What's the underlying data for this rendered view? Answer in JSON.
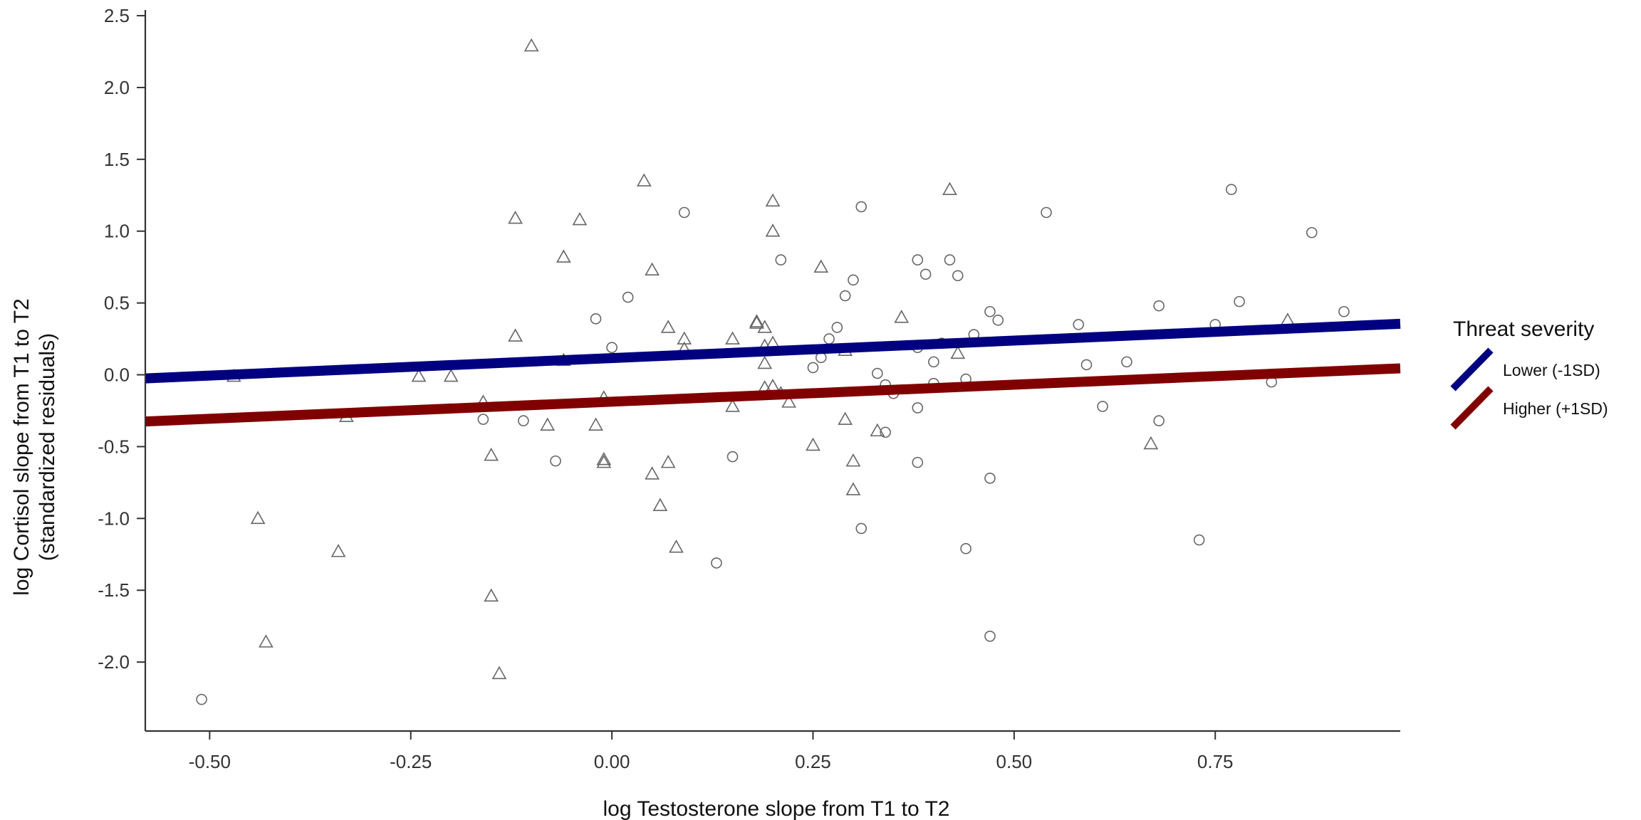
{
  "chart_data": {
    "type": "scatter",
    "xlabel": "log Testosterone slope from T1 to T2",
    "ylabel_line1": "log Cortisol slope from T1 to T2",
    "ylabel_line2": "(standardized residuals)",
    "xlim": [
      -0.58,
      0.98
    ],
    "ylim": [
      -2.48,
      2.52
    ],
    "x_ticks": [
      -0.5,
      -0.25,
      0.0,
      0.25,
      0.5,
      0.75
    ],
    "x_tick_labels": [
      "-0.50",
      "-0.25",
      "0.00",
      "0.25",
      "0.50",
      "0.75"
    ],
    "y_ticks": [
      -2.0,
      -1.5,
      -1.0,
      -0.5,
      0.0,
      0.5,
      1.0,
      1.5,
      2.0,
      2.5
    ],
    "y_tick_labels": [
      "-2.0",
      "-1.5",
      "-1.0",
      "-0.5",
      "0.0",
      "0.5",
      "1.0",
      "1.5",
      "2.0",
      "2.5"
    ],
    "grid": false,
    "legend": {
      "title": "Threat severity",
      "placement": "right",
      "entries": [
        {
          "label": "Lower (-1SD)",
          "color": "#000080"
        },
        {
          "label": "Higher (+1SD)",
          "color": "#800000"
        }
      ]
    },
    "lines": [
      {
        "name": "Lower (-1SD)",
        "color": "#000080",
        "x": [
          -0.58,
          0.98
        ],
        "y": [
          -0.025,
          0.355
        ]
      },
      {
        "name": "Higher (+1SD)",
        "color": "#800000",
        "x": [
          -0.58,
          0.98
        ],
        "y": [
          -0.325,
          0.045
        ]
      }
    ],
    "points_circle": [
      [
        -0.51,
        -2.26
      ],
      [
        -0.16,
        -0.31
      ],
      [
        -0.11,
        -0.32
      ],
      [
        -0.07,
        -0.6
      ],
      [
        -0.02,
        0.39
      ],
      [
        0.0,
        0.19
      ],
      [
        0.02,
        0.54
      ],
      [
        0.09,
        1.13
      ],
      [
        0.13,
        -1.31
      ],
      [
        0.15,
        -0.57
      ],
      [
        0.21,
        0.8
      ],
      [
        0.25,
        0.05
      ],
      [
        0.26,
        0.12
      ],
      [
        0.27,
        0.25
      ],
      [
        0.28,
        0.33
      ],
      [
        0.29,
        0.55
      ],
      [
        0.3,
        0.66
      ],
      [
        0.31,
        1.17
      ],
      [
        0.31,
        -1.07
      ],
      [
        0.33,
        0.01
      ],
      [
        0.34,
        -0.07
      ],
      [
        0.34,
        -0.4
      ],
      [
        0.35,
        -0.13
      ],
      [
        0.38,
        0.8
      ],
      [
        0.38,
        0.19
      ],
      [
        0.38,
        -0.23
      ],
      [
        0.38,
        -0.61
      ],
      [
        0.39,
        0.7
      ],
      [
        0.4,
        -0.06
      ],
      [
        0.4,
        0.09
      ],
      [
        0.41,
        0.22
      ],
      [
        0.42,
        0.8
      ],
      [
        0.43,
        0.69
      ],
      [
        0.44,
        -1.21
      ],
      [
        0.44,
        -0.03
      ],
      [
        0.45,
        0.28
      ],
      [
        0.47,
        0.44
      ],
      [
        0.47,
        -0.72
      ],
      [
        0.47,
        -1.82
      ],
      [
        0.48,
        0.38
      ],
      [
        0.54,
        1.13
      ],
      [
        0.58,
        0.35
      ],
      [
        0.59,
        0.07
      ],
      [
        0.61,
        -0.22
      ],
      [
        0.64,
        0.09
      ],
      [
        0.68,
        -0.32
      ],
      [
        0.68,
        0.48
      ],
      [
        0.73,
        -1.15
      ],
      [
        0.75,
        0.35
      ],
      [
        0.77,
        1.29
      ],
      [
        0.78,
        0.51
      ],
      [
        0.82,
        -0.05
      ],
      [
        0.87,
        0.99
      ],
      [
        0.91,
        0.44
      ]
    ],
    "points_triangle": [
      [
        -0.47,
        -0.01
      ],
      [
        -0.44,
        -1.0
      ],
      [
        -0.43,
        -1.86
      ],
      [
        -0.34,
        -1.23
      ],
      [
        -0.33,
        -0.29
      ],
      [
        -0.24,
        -0.01
      ],
      [
        -0.2,
        -0.01
      ],
      [
        -0.16,
        -0.19
      ],
      [
        -0.15,
        -0.56
      ],
      [
        -0.15,
        -1.54
      ],
      [
        -0.14,
        -2.08
      ],
      [
        -0.12,
        0.27
      ],
      [
        -0.12,
        1.09
      ],
      [
        -0.1,
        2.29
      ],
      [
        -0.08,
        -0.35
      ],
      [
        -0.06,
        0.82
      ],
      [
        -0.06,
        0.1
      ],
      [
        -0.04,
        1.08
      ],
      [
        -0.02,
        -0.35
      ],
      [
        -0.01,
        -0.16
      ],
      [
        -0.01,
        -0.59
      ],
      [
        -0.01,
        -0.61
      ],
      [
        0.04,
        1.35
      ],
      [
        0.05,
        0.73
      ],
      [
        0.05,
        -0.69
      ],
      [
        0.06,
        -0.91
      ],
      [
        0.07,
        0.33
      ],
      [
        0.07,
        -0.61
      ],
      [
        0.08,
        -1.2
      ],
      [
        0.09,
        0.18
      ],
      [
        0.09,
        0.25
      ],
      [
        0.15,
        -0.22
      ],
      [
        0.15,
        0.25
      ],
      [
        0.18,
        0.37
      ],
      [
        0.18,
        0.36
      ],
      [
        0.19,
        0.33
      ],
      [
        0.19,
        0.2
      ],
      [
        0.19,
        0.08
      ],
      [
        0.19,
        -0.09
      ],
      [
        0.2,
        1.21
      ],
      [
        0.2,
        1.0
      ],
      [
        0.2,
        0.22
      ],
      [
        0.2,
        -0.08
      ],
      [
        0.21,
        -0.13
      ],
      [
        0.22,
        -0.19
      ],
      [
        0.25,
        -0.49
      ],
      [
        0.26,
        0.75
      ],
      [
        0.29,
        0.17
      ],
      [
        0.29,
        -0.31
      ],
      [
        0.3,
        -0.8
      ],
      [
        0.3,
        -0.6
      ],
      [
        0.33,
        -0.39
      ],
      [
        0.36,
        0.4
      ],
      [
        0.42,
        1.29
      ],
      [
        0.43,
        0.15
      ],
      [
        0.67,
        -0.48
      ],
      [
        0.84,
        0.38
      ]
    ]
  }
}
